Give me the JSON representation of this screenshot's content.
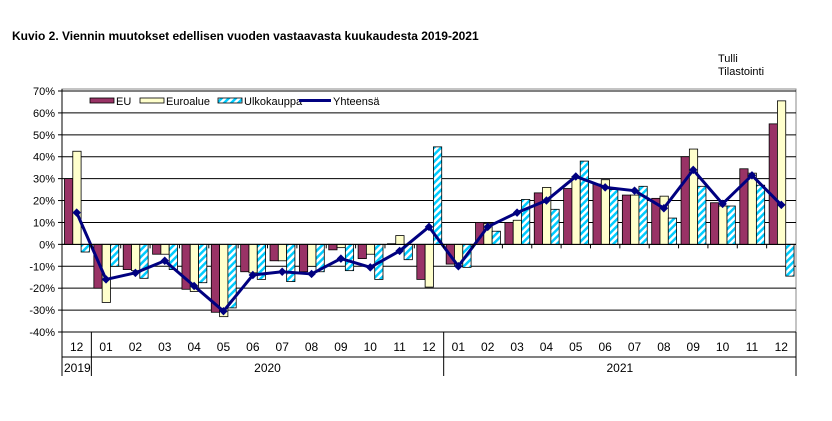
{
  "chart_data": {
    "type": "bar",
    "title": "Kuvio  2. Viennin  muutokset edellisen vuoden  vastaavasta kuukaudesta 2019-2021",
    "source": [
      "Tulli",
      "Tilastointi"
    ],
    "xlabel": "",
    "ylabel": "",
    "ylim": [
      -40,
      70
    ],
    "yticks": [
      "70%",
      "60%",
      "50%",
      "40%",
      "30%",
      "20%",
      "10%",
      "0%",
      "-10%",
      "-20%",
      "-30%",
      "-40%"
    ],
    "categories": [
      "12",
      "01",
      "02",
      "03",
      "04",
      "05",
      "06",
      "07",
      "08",
      "09",
      "10",
      "11",
      "12",
      "01",
      "02",
      "03",
      "04",
      "05",
      "06",
      "07",
      "08",
      "09",
      "10",
      "11",
      "12"
    ],
    "years": [
      {
        "label": "2019",
        "count": 1
      },
      {
        "label": "2020",
        "count": 12
      },
      {
        "label": "2021",
        "count": 12
      }
    ],
    "legend_position": "top-left",
    "grid": true,
    "series": [
      {
        "name": "EU",
        "kind": "bar",
        "color": "#993366",
        "values": [
          30,
          -20,
          -11.5,
          -4.5,
          -20.5,
          -31,
          -12.5,
          -7.5,
          -12.5,
          -2.5,
          -6.5,
          0.3,
          -16,
          -9,
          10,
          10,
          23.5,
          25.5,
          27.5,
          22.5,
          21,
          40,
          19,
          34.5,
          55
        ]
      },
      {
        "name": "Euroalue",
        "kind": "bar",
        "color": "#FFFFCC",
        "values": [
          42.5,
          -26.5,
          -12,
          -4.5,
          -21.5,
          -33,
          -13,
          -7.5,
          -10,
          -1.5,
          -4.5,
          4,
          -19.5,
          -10,
          9.5,
          11,
          26,
          31,
          29.5,
          22.5,
          22,
          43.5,
          17.5,
          32.5,
          65.5
        ]
      },
      {
        "name": "Ulkokauppa",
        "kind": "bar",
        "color": "#00CCFF",
        "values": [
          -3.5,
          -10,
          -15.5,
          -11.5,
          -17.5,
          -29,
          -16,
          -17,
          -12.5,
          -12,
          -16,
          -7,
          44.5,
          -10.5,
          6,
          20.5,
          16,
          38,
          25,
          26.5,
          12,
          26.5,
          17.5,
          27,
          -14.5
        ]
      },
      {
        "name": "Yhteensä",
        "kind": "line",
        "color": "#000080",
        "values": [
          14.5,
          -16,
          -13,
          -7.5,
          -19,
          -30.5,
          -14,
          -12.5,
          -13.5,
          -6.5,
          -10.5,
          -3,
          8,
          -10,
          8,
          14.5,
          20,
          31,
          26,
          24.5,
          16.5,
          34,
          18.5,
          31.5,
          18
        ]
      }
    ]
  }
}
